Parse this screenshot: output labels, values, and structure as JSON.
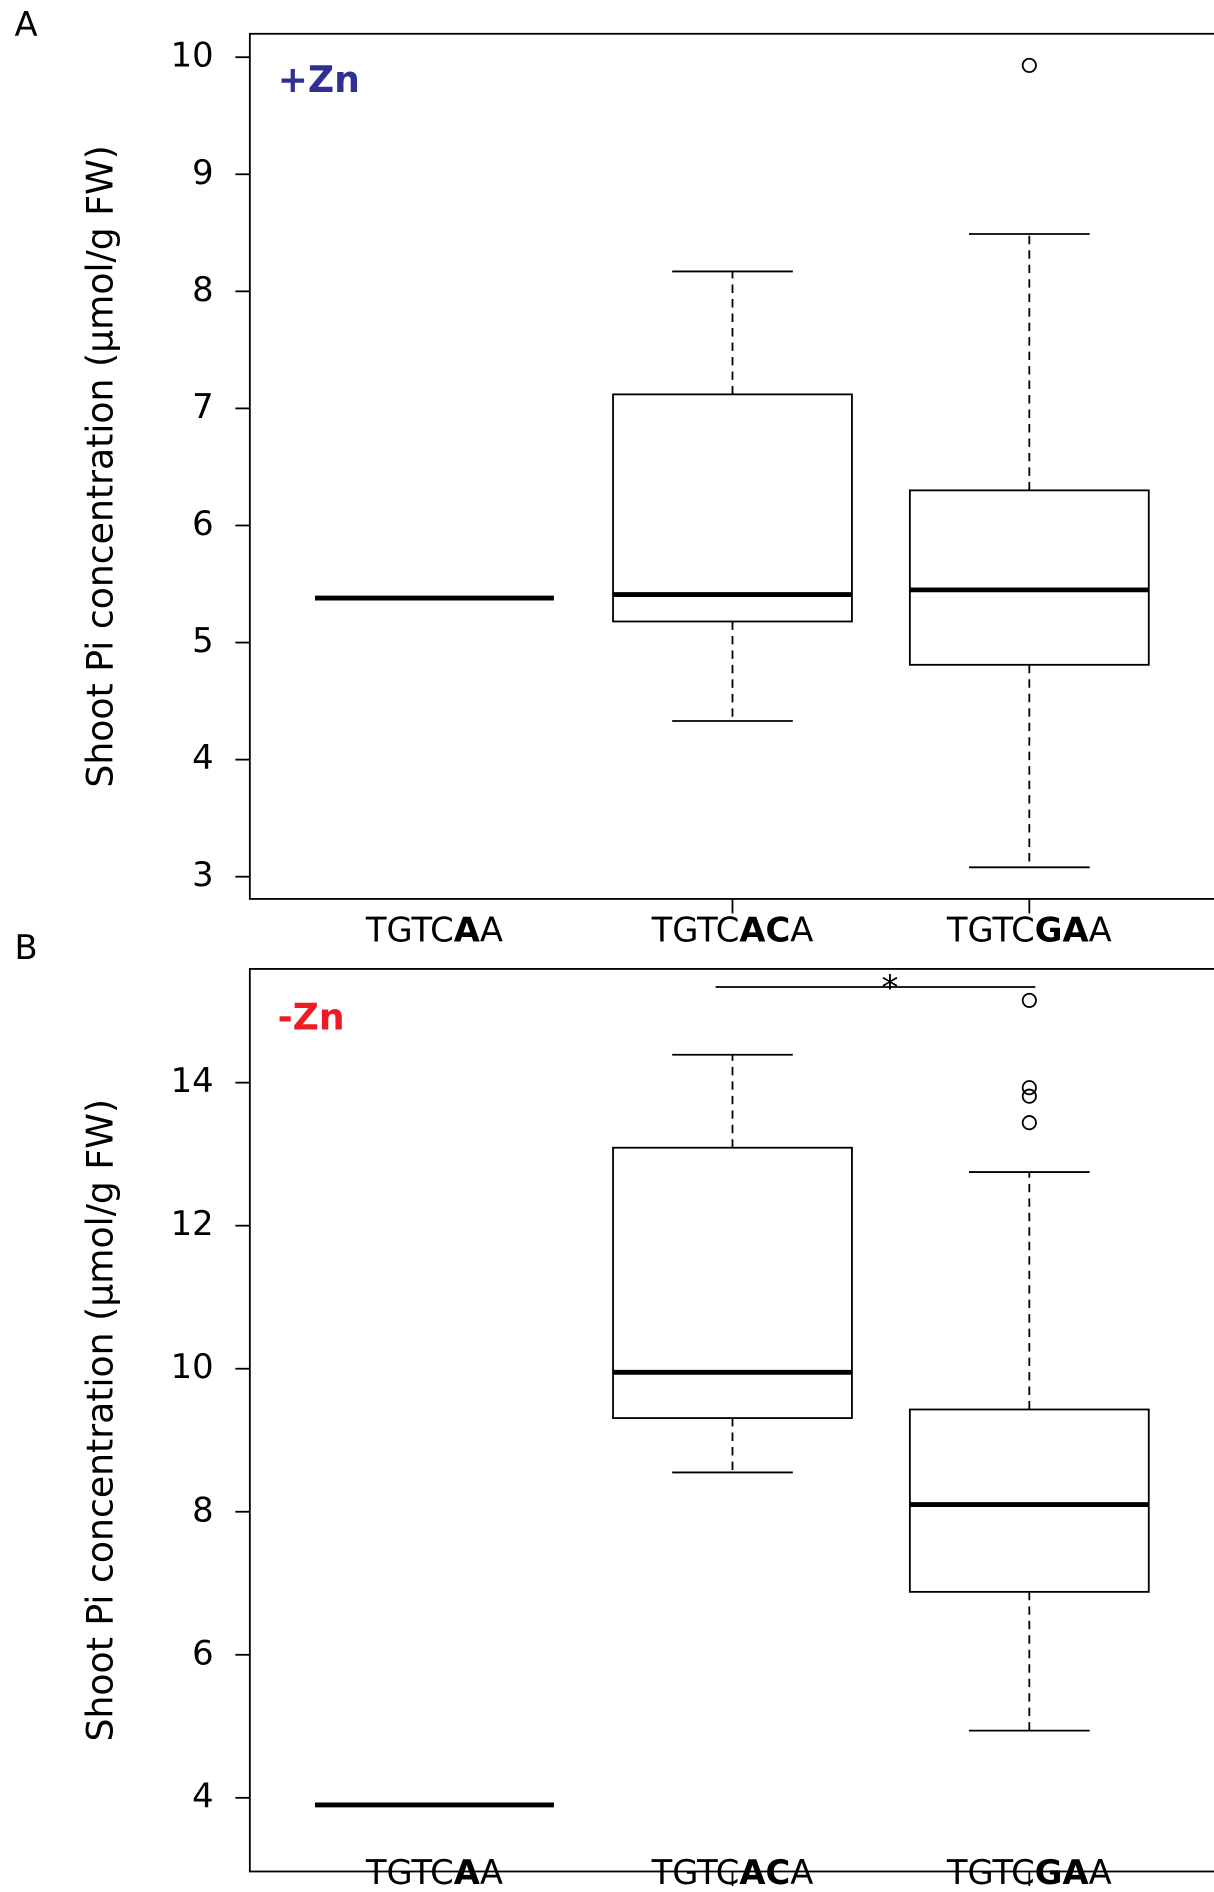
{
  "chart_data": [
    {
      "type": "box",
      "panel_label": "A",
      "condition": "+Zn",
      "condition_color": "#2e3192",
      "ylabel": "Shoot Pi concentration (µmol/g FW)",
      "categories": [
        [
          {
            "text": "TGTC"
          },
          {
            "text": "A",
            "bold": true
          },
          {
            "text": "A"
          }
        ],
        [
          {
            "text": "TGTC"
          },
          {
            "text": "AC",
            "bold": true
          },
          {
            "text": "A"
          }
        ],
        [
          {
            "text": "TGTC"
          },
          {
            "text": "GA",
            "bold": true
          },
          {
            "text": "A"
          }
        ]
      ],
      "boxes": [
        {
          "min": 5.38,
          "q1": 5.38,
          "median": 5.38,
          "q3": 5.38,
          "max": 5.38,
          "outliers": []
        },
        {
          "min": 4.33,
          "q1": 5.18,
          "median": 5.41,
          "q3": 7.12,
          "max": 8.17,
          "outliers": []
        },
        {
          "min": 3.08,
          "q1": 4.81,
          "median": 5.45,
          "q3": 6.3,
          "max": 8.49,
          "outliers": [
            9.93
          ]
        }
      ],
      "ylim": [
        2.81,
        10.2
      ],
      "yticks": [
        3,
        4,
        5,
        6,
        7,
        8,
        9,
        10
      ]
    },
    {
      "type": "box",
      "panel_label": "B",
      "condition": "-Zn",
      "condition_color": "#ed1c24",
      "ylabel": "Shoot Pi concentration (µmol/g FW)",
      "categories": [
        [
          {
            "text": "TGTC"
          },
          {
            "text": "A",
            "bold": true
          },
          {
            "text": "A"
          }
        ],
        [
          {
            "text": "TGTC"
          },
          {
            "text": "AC",
            "bold": true
          },
          {
            "text": "A"
          }
        ],
        [
          {
            "text": "TGTC"
          },
          {
            "text": "GA",
            "bold": true
          },
          {
            "text": "A"
          }
        ]
      ],
      "boxes": [
        {
          "min": 3.9,
          "q1": 3.9,
          "median": 3.9,
          "q3": 3.9,
          "max": 3.9,
          "outliers": []
        },
        {
          "min": 8.55,
          "q1": 9.31,
          "median": 9.95,
          "q3": 13.09,
          "max": 14.39,
          "outliers": []
        },
        {
          "min": 4.94,
          "q1": 6.88,
          "median": 8.1,
          "q3": 9.43,
          "max": 12.75,
          "outliers": [
            15.15,
            13.93,
            13.81,
            13.44
          ]
        }
      ],
      "significance": "*",
      "ylim": [
        2.97,
        15.59
      ],
      "yticks": [
        4,
        6,
        8,
        10,
        12,
        14
      ]
    }
  ]
}
